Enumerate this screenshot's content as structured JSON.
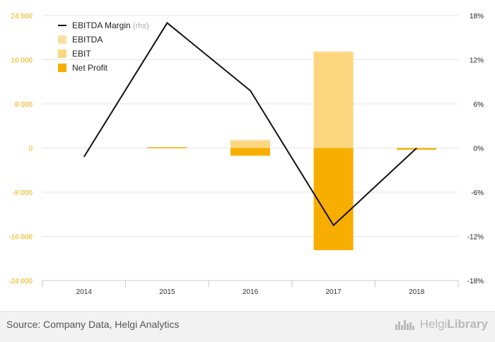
{
  "chart_data": {
    "type": "bar",
    "categories": [
      "2014",
      "2015",
      "2016",
      "2017",
      "2018"
    ],
    "series": [
      {
        "name": "EBITDA",
        "kind": "bar",
        "axis": "left",
        "values": [
          0,
          0,
          1500,
          17500,
          0
        ],
        "color": "#fbe0a6"
      },
      {
        "name": "EBIT",
        "kind": "bar",
        "axis": "left",
        "values": [
          0,
          0,
          1200,
          17400,
          -200
        ],
        "color": "#fcd67f"
      },
      {
        "name": "Net Profit",
        "kind": "bar",
        "axis": "left",
        "values": [
          0,
          150,
          -1400,
          -18500,
          -300
        ],
        "color": "#f7ae00"
      },
      {
        "name": "EBITDA Margin",
        "kind": "line",
        "axis": "right",
        "values": [
          -1.2,
          17,
          7.8,
          -10.5,
          0
        ],
        "color": "#111111"
      }
    ],
    "legend_suffix": "(rhs)",
    "y_left": {
      "min": -24000,
      "max": 24000,
      "ticks": [
        24000,
        16000,
        8000,
        0,
        -8000,
        -16000,
        -24000
      ],
      "tick_labels": [
        "24 000",
        "16 000",
        "8 000",
        "0",
        "-8 000",
        "-16 000",
        "-24 000"
      ],
      "color": "#f7ae00"
    },
    "y_right": {
      "min": -18,
      "max": 18,
      "ticks": [
        18,
        12,
        6,
        0,
        -6,
        -12,
        -18
      ],
      "tick_labels": [
        "18%",
        "12%",
        "6%",
        "0%",
        "-6%",
        "-12%",
        "-18%"
      ],
      "unit": "%"
    },
    "grid": true,
    "legend_position": "top-left"
  },
  "footer": {
    "source": "Source: Company Data, Helgi Analytics",
    "brand_a": "Helgi",
    "brand_b": "Library"
  },
  "colors": {
    "grid": "#e5e5e5",
    "axis": "#cccccc",
    "line": "#111111"
  }
}
